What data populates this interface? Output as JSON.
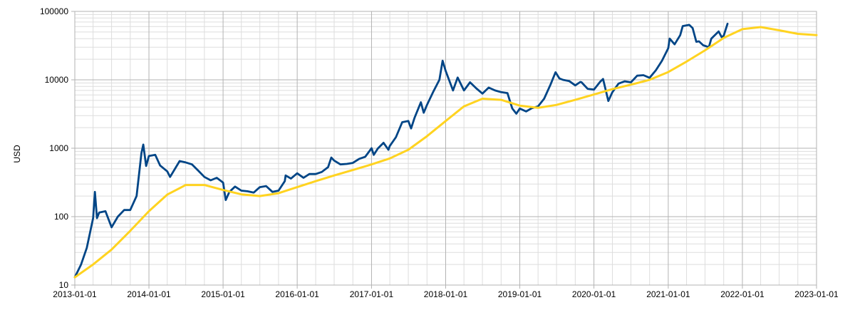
{
  "chart_data": {
    "type": "line",
    "title": "",
    "xlabel": "",
    "ylabel": "USD",
    "y_scale": "log",
    "ylim": [
      10,
      100000
    ],
    "xlim": [
      "2013-01-01",
      "2023-01-01"
    ],
    "grid": true,
    "legend": "none",
    "y_ticks": [
      "10",
      "100",
      "1000",
      "10000",
      "100000"
    ],
    "x_ticks": [
      "2013-01-01",
      "2014-01-01",
      "2015-01-01",
      "2016-01-01",
      "2017-01-01",
      "2018-01-01",
      "2019-01-01",
      "2020-01-01",
      "2021-01-01",
      "2022-01-01",
      "2023-01-01"
    ],
    "series": [
      {
        "color": "#004586",
        "points": [
          [
            "2013-01-01",
            13
          ],
          [
            "2013-02-01",
            20
          ],
          [
            "2013-03-01",
            35
          ],
          [
            "2013-04-01",
            95
          ],
          [
            "2013-04-10",
            230
          ],
          [
            "2013-04-20",
            95
          ],
          [
            "2013-05-01",
            115
          ],
          [
            "2013-06-01",
            120
          ],
          [
            "2013-07-01",
            70
          ],
          [
            "2013-08-01",
            100
          ],
          [
            "2013-09-01",
            125
          ],
          [
            "2013-10-01",
            125
          ],
          [
            "2013-11-01",
            200
          ],
          [
            "2013-11-25",
            850
          ],
          [
            "2013-12-04",
            1130
          ],
          [
            "2013-12-18",
            550
          ],
          [
            "2014-01-01",
            770
          ],
          [
            "2014-02-01",
            800
          ],
          [
            "2014-02-25",
            560
          ],
          [
            "2014-04-01",
            460
          ],
          [
            "2014-04-15",
            380
          ],
          [
            "2014-06-01",
            650
          ],
          [
            "2014-07-01",
            620
          ],
          [
            "2014-08-01",
            580
          ],
          [
            "2014-09-01",
            470
          ],
          [
            "2014-10-01",
            380
          ],
          [
            "2014-11-01",
            340
          ],
          [
            "2014-12-01",
            370
          ],
          [
            "2015-01-01",
            315
          ],
          [
            "2015-01-14",
            175
          ],
          [
            "2015-02-01",
            230
          ],
          [
            "2015-03-01",
            275
          ],
          [
            "2015-04-01",
            240
          ],
          [
            "2015-05-01",
            235
          ],
          [
            "2015-06-01",
            225
          ],
          [
            "2015-07-01",
            270
          ],
          [
            "2015-08-01",
            280
          ],
          [
            "2015-09-01",
            230
          ],
          [
            "2015-10-01",
            240
          ],
          [
            "2015-11-01",
            330
          ],
          [
            "2015-11-05",
            400
          ],
          [
            "2015-12-01",
            360
          ],
          [
            "2016-01-01",
            430
          ],
          [
            "2016-02-01",
            370
          ],
          [
            "2016-03-01",
            420
          ],
          [
            "2016-04-01",
            420
          ],
          [
            "2016-05-01",
            450
          ],
          [
            "2016-06-01",
            530
          ],
          [
            "2016-06-17",
            730
          ],
          [
            "2016-07-01",
            660
          ],
          [
            "2016-08-01",
            580
          ],
          [
            "2016-09-01",
            590
          ],
          [
            "2016-10-01",
            610
          ],
          [
            "2016-11-01",
            700
          ],
          [
            "2016-12-01",
            750
          ],
          [
            "2017-01-01",
            1000
          ],
          [
            "2017-01-12",
            800
          ],
          [
            "2017-02-01",
            990
          ],
          [
            "2017-03-01",
            1200
          ],
          [
            "2017-03-25",
            950
          ],
          [
            "2017-04-01",
            1080
          ],
          [
            "2017-05-01",
            1450
          ],
          [
            "2017-06-01",
            2400
          ],
          [
            "2017-07-01",
            2500
          ],
          [
            "2017-07-15",
            1950
          ],
          [
            "2017-08-01",
            2800
          ],
          [
            "2017-09-01",
            4700
          ],
          [
            "2017-09-15",
            3300
          ],
          [
            "2017-10-01",
            4300
          ],
          [
            "2017-11-01",
            6700
          ],
          [
            "2017-12-01",
            10000
          ],
          [
            "2017-12-17",
            19000
          ],
          [
            "2018-01-01",
            13500
          ],
          [
            "2018-02-06",
            7000
          ],
          [
            "2018-03-01",
            10800
          ],
          [
            "2018-04-01",
            7000
          ],
          [
            "2018-05-01",
            9200
          ],
          [
            "2018-06-01",
            7500
          ],
          [
            "2018-07-01",
            6300
          ],
          [
            "2018-08-01",
            7700
          ],
          [
            "2018-09-01",
            7000
          ],
          [
            "2018-10-01",
            6600
          ],
          [
            "2018-11-01",
            6400
          ],
          [
            "2018-11-25",
            3800
          ],
          [
            "2018-12-15",
            3200
          ],
          [
            "2019-01-01",
            3800
          ],
          [
            "2019-02-01",
            3450
          ],
          [
            "2019-03-01",
            3850
          ],
          [
            "2019-04-01",
            4100
          ],
          [
            "2019-05-01",
            5300
          ],
          [
            "2019-06-01",
            8500
          ],
          [
            "2019-06-26",
            12900
          ],
          [
            "2019-07-15",
            10500
          ],
          [
            "2019-08-01",
            10000
          ],
          [
            "2019-09-01",
            9600
          ],
          [
            "2019-10-01",
            8300
          ],
          [
            "2019-10-26",
            9300
          ],
          [
            "2019-11-01",
            9200
          ],
          [
            "2019-12-01",
            7400
          ],
          [
            "2020-01-01",
            7200
          ],
          [
            "2020-02-01",
            9400
          ],
          [
            "2020-02-15",
            10300
          ],
          [
            "2020-03-12",
            4900
          ],
          [
            "2020-04-01",
            6600
          ],
          [
            "2020-05-01",
            8800
          ],
          [
            "2020-06-01",
            9500
          ],
          [
            "2020-07-01",
            9200
          ],
          [
            "2020-08-01",
            11500
          ],
          [
            "2020-09-01",
            11700
          ],
          [
            "2020-10-01",
            10700
          ],
          [
            "2020-11-01",
            13800
          ],
          [
            "2020-12-01",
            19000
          ],
          [
            "2021-01-01",
            29000
          ],
          [
            "2021-01-08",
            40000
          ],
          [
            "2021-02-01",
            33000
          ],
          [
            "2021-03-01",
            45000
          ],
          [
            "2021-03-13",
            61000
          ],
          [
            "2021-04-14",
            63500
          ],
          [
            "2021-05-01",
            57000
          ],
          [
            "2021-05-19",
            36000
          ],
          [
            "2021-06-01",
            36500
          ],
          [
            "2021-06-22",
            32000
          ],
          [
            "2021-07-20",
            30000
          ],
          [
            "2021-08-01",
            40000
          ],
          [
            "2021-09-06",
            51000
          ],
          [
            "2021-09-21",
            42000
          ],
          [
            "2021-10-01",
            44000
          ],
          [
            "2021-10-20",
            66000
          ]
        ]
      },
      {
        "color": "#ffd320",
        "points": [
          [
            "2013-01-01",
            13
          ],
          [
            "2013-04-01",
            20
          ],
          [
            "2013-07-01",
            33
          ],
          [
            "2013-10-01",
            62
          ],
          [
            "2014-01-01",
            120
          ],
          [
            "2014-04-01",
            210
          ],
          [
            "2014-07-01",
            290
          ],
          [
            "2014-10-01",
            290
          ],
          [
            "2015-01-01",
            245
          ],
          [
            "2015-04-01",
            212
          ],
          [
            "2015-07-01",
            200
          ],
          [
            "2015-10-01",
            220
          ],
          [
            "2016-01-01",
            270
          ],
          [
            "2016-04-01",
            330
          ],
          [
            "2016-07-01",
            400
          ],
          [
            "2016-10-01",
            480
          ],
          [
            "2017-01-01",
            580
          ],
          [
            "2017-04-01",
            710
          ],
          [
            "2017-07-01",
            950
          ],
          [
            "2017-10-01",
            1500
          ],
          [
            "2018-01-01",
            2500
          ],
          [
            "2018-04-01",
            4100
          ],
          [
            "2018-07-01",
            5300
          ],
          [
            "2018-10-01",
            5100
          ],
          [
            "2019-01-01",
            4200
          ],
          [
            "2019-04-01",
            3900
          ],
          [
            "2019-07-01",
            4300
          ],
          [
            "2019-10-01",
            5100
          ],
          [
            "2020-01-01",
            6100
          ],
          [
            "2020-04-01",
            7300
          ],
          [
            "2020-07-01",
            8500
          ],
          [
            "2020-10-01",
            10000
          ],
          [
            "2021-01-01",
            13000
          ],
          [
            "2021-04-01",
            18500
          ],
          [
            "2021-07-01",
            27000
          ],
          [
            "2021-10-01",
            41000
          ],
          [
            "2022-01-01",
            55000
          ],
          [
            "2022-04-01",
            59000
          ],
          [
            "2022-07-01",
            53000
          ],
          [
            "2022-10-01",
            47000
          ],
          [
            "2023-01-01",
            45000
          ]
        ]
      }
    ]
  }
}
